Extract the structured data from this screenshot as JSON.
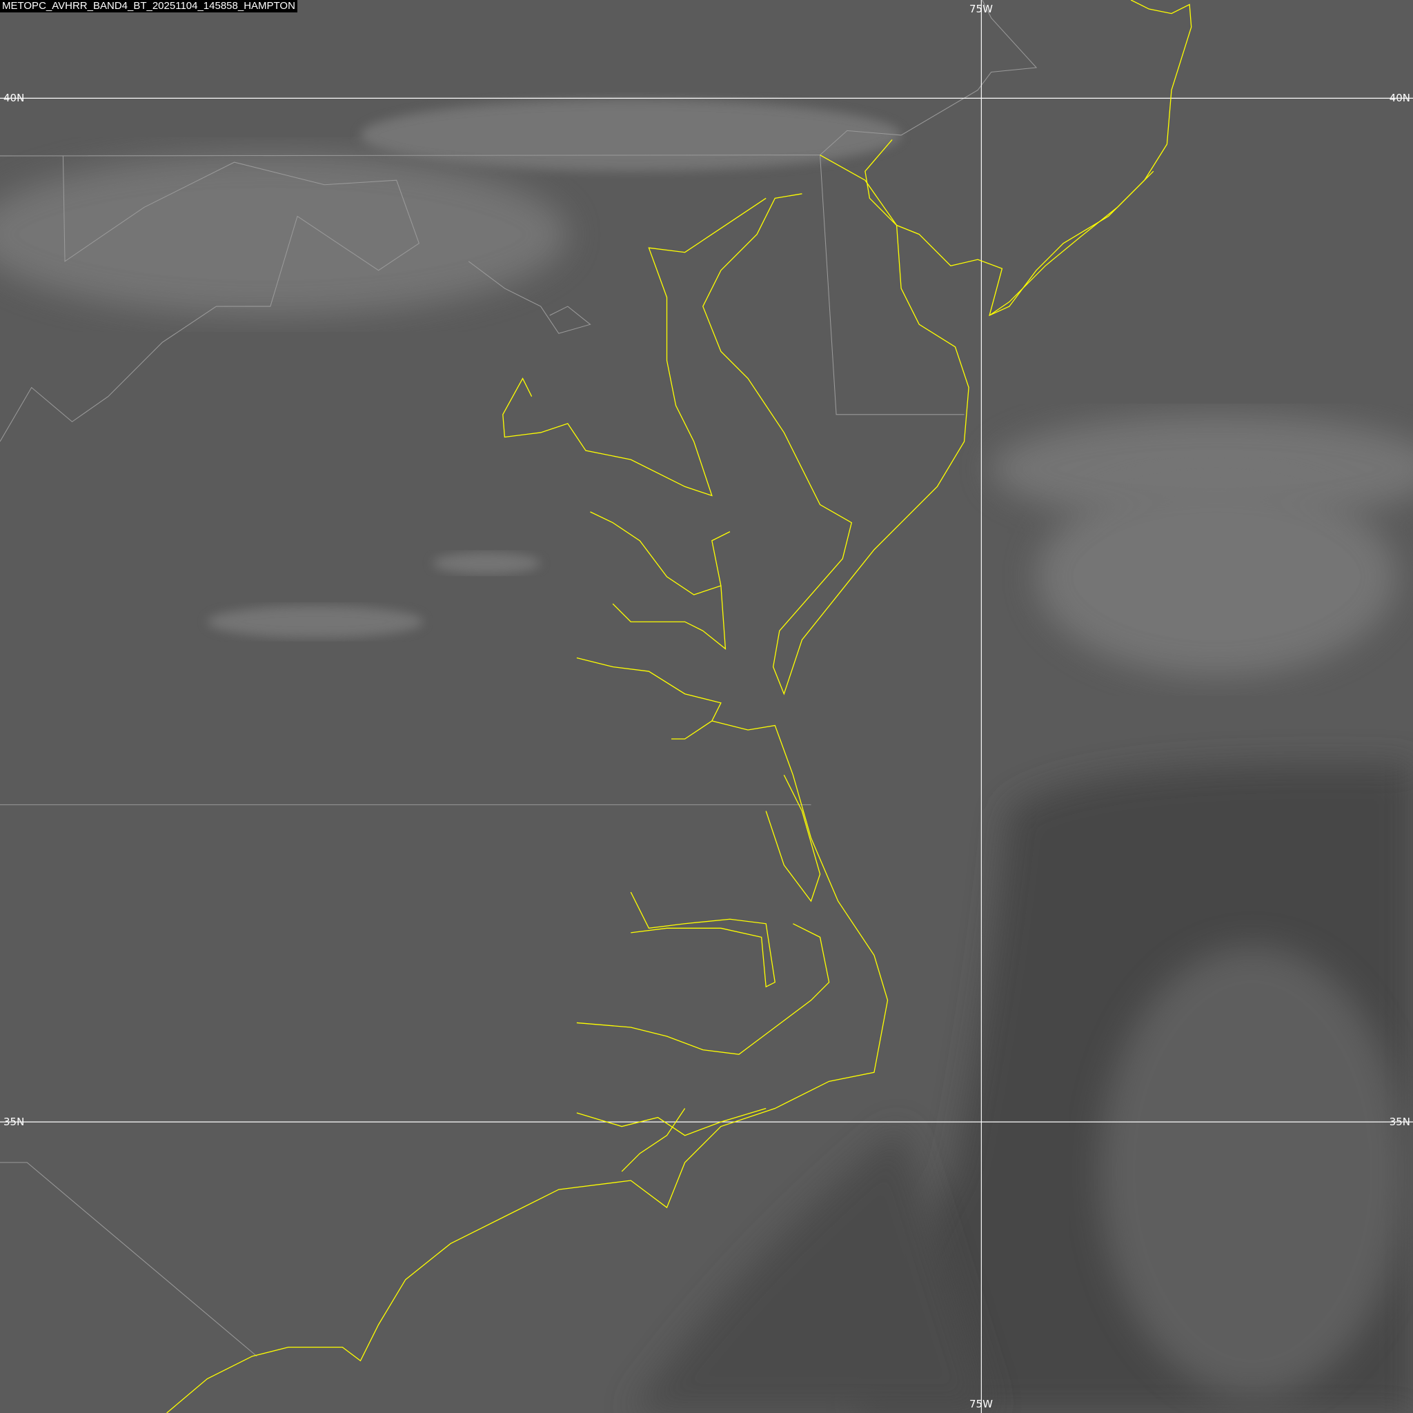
{
  "title": "METOPC_AVHRR_BAND4_BT_20251104_145858_HAMPTON",
  "grid": {
    "lat_labels": [
      "40N",
      "35N"
    ],
    "lon_labels": [
      "75W"
    ]
  },
  "colors": {
    "coastline": "#ffff00",
    "gridline": "#ffffff",
    "land_cloud": "#5b5b5b",
    "ocean": "#444444",
    "borders": "#9a9a9a"
  }
}
